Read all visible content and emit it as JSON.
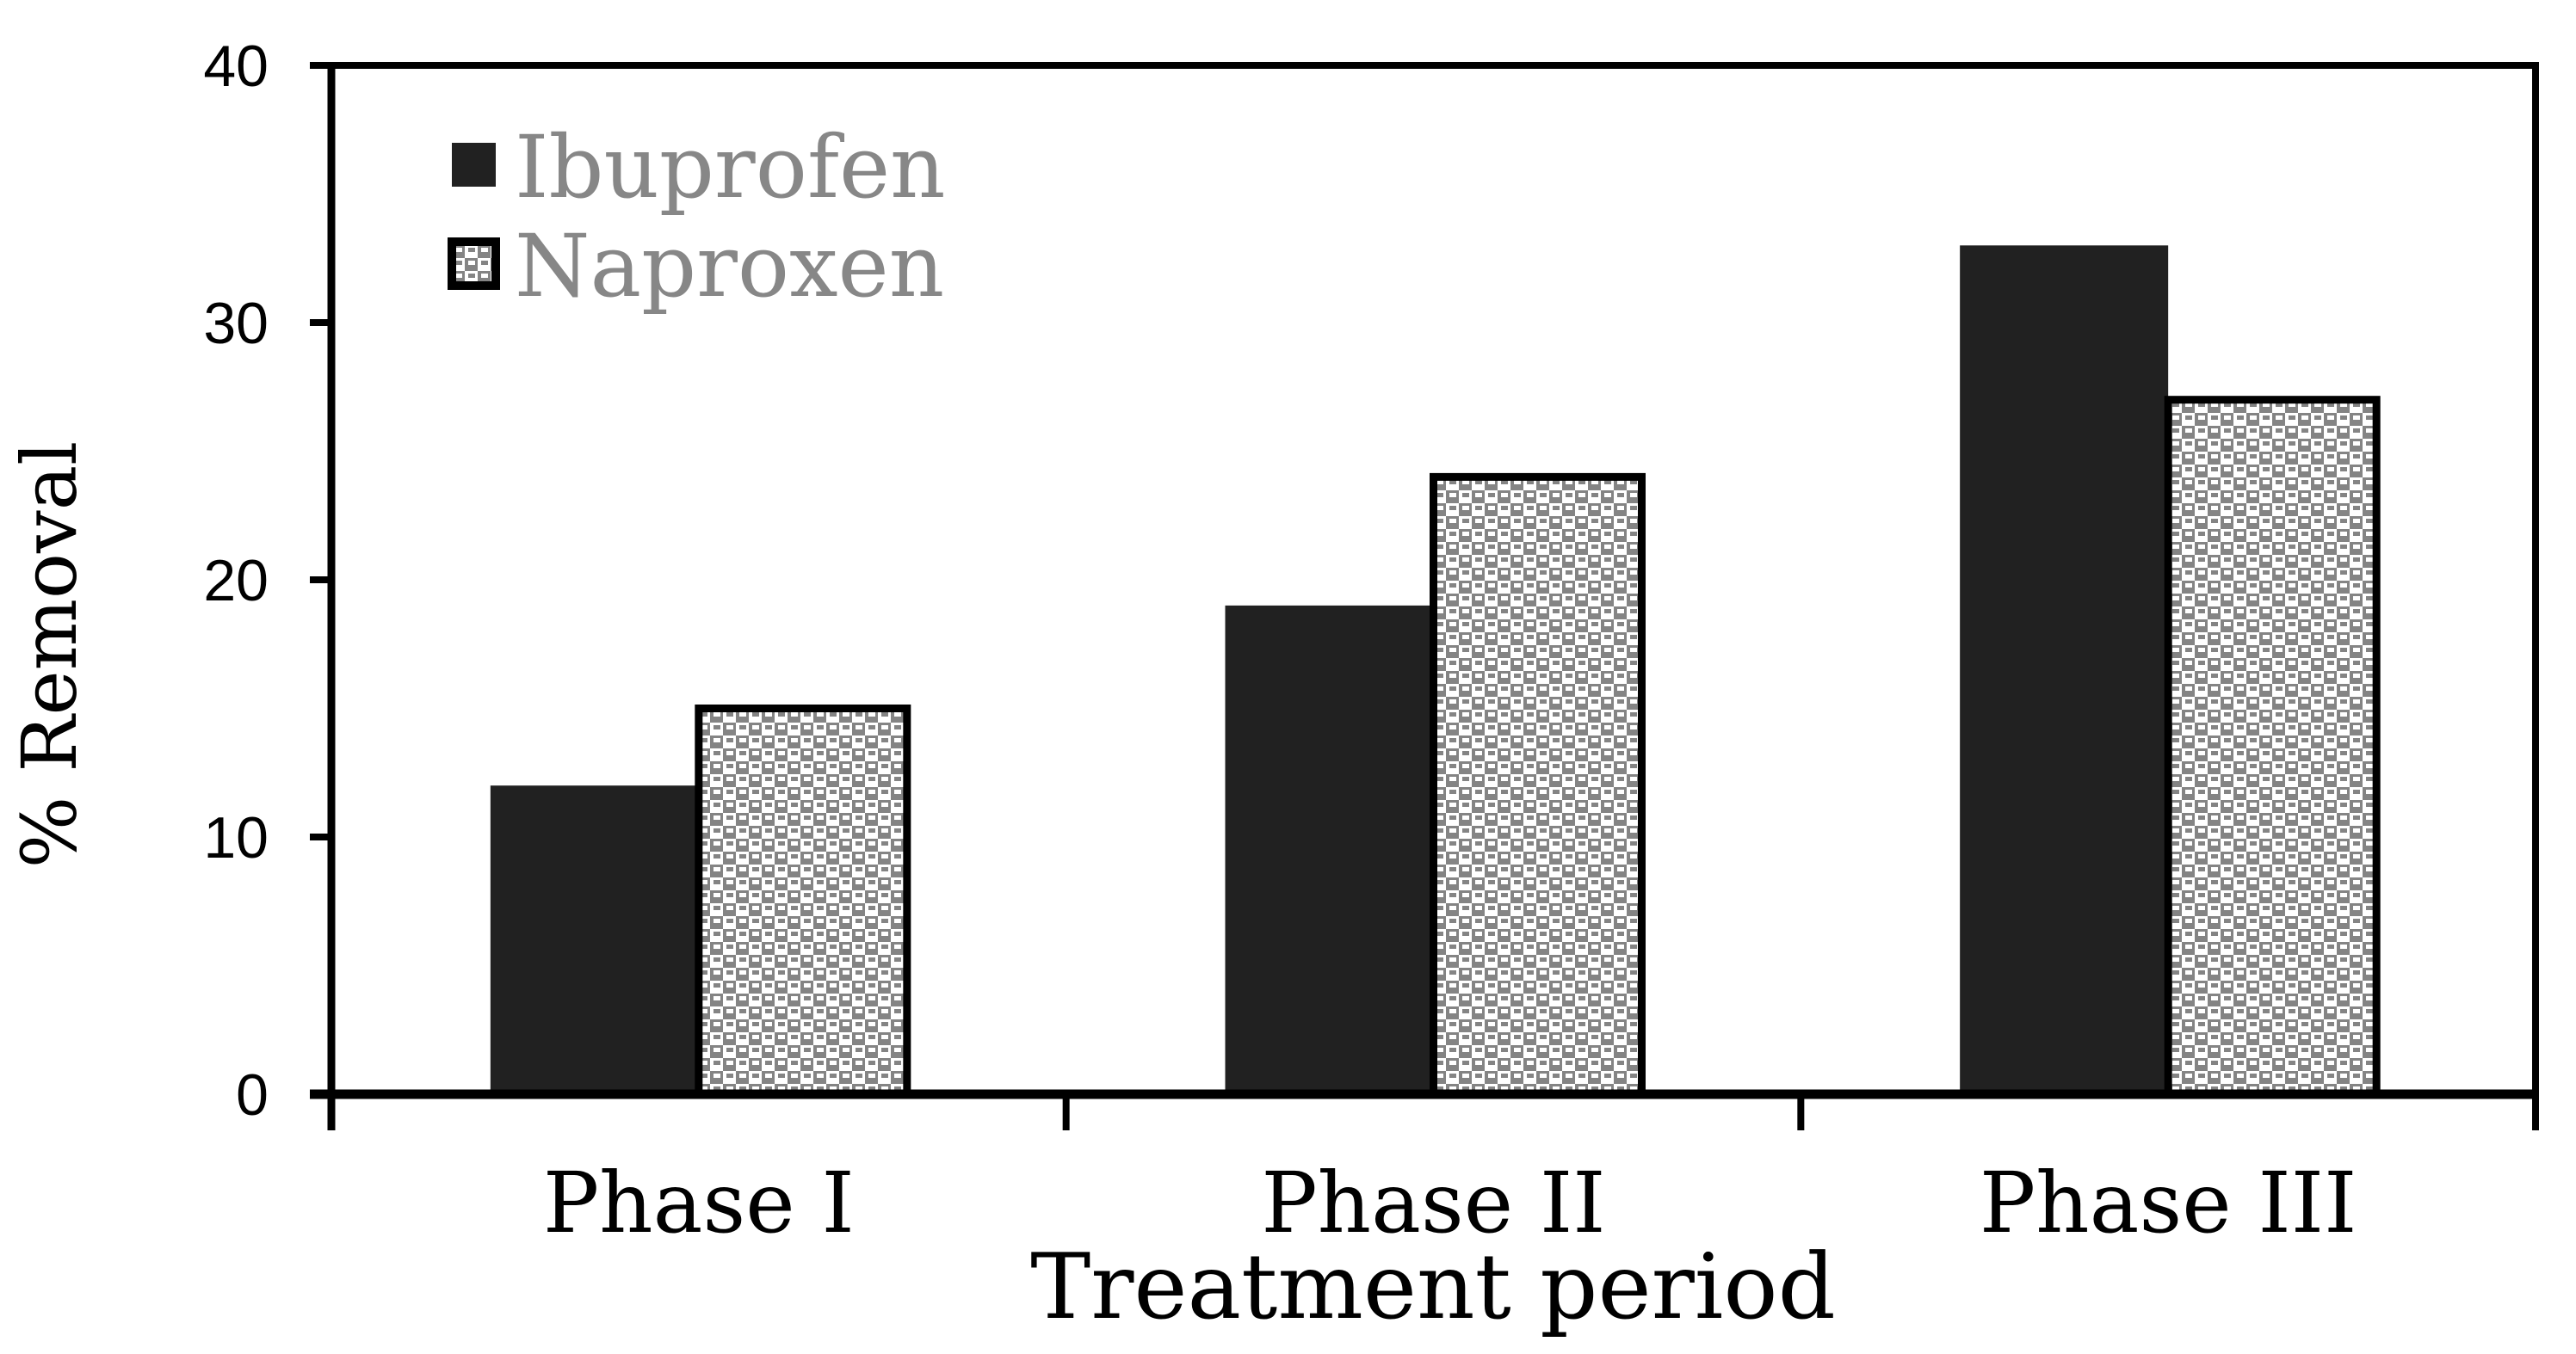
{
  "chart_data": {
    "type": "bar",
    "title": "",
    "categories": [
      "Phase I",
      "Phase II",
      "Phase III"
    ],
    "series": [
      {
        "name": "Ibuprofen",
        "values": [
          12,
          19,
          33
        ],
        "fill_style": "solid"
      },
      {
        "name": "Naproxen",
        "values": [
          15,
          24,
          27
        ],
        "fill_style": "checkered-pattern"
      }
    ],
    "xlabel": "Treatment period",
    "ylabel": "% Removal",
    "ylim": [
      0,
      40
    ],
    "yticks": [
      0,
      10,
      20,
      30,
      40
    ],
    "grid": false,
    "legend_position": "inside-top-left",
    "colors": {
      "ibuprofen_fill": "#212121",
      "naproxen_pattern_gray": "#848484",
      "naproxen_pattern_bg": "#ffffff",
      "naproxen_border": "#000000",
      "legend_text": "#878787",
      "axis_line": "#000000",
      "tick_label": "#000000",
      "axis_title": "#000000"
    }
  }
}
